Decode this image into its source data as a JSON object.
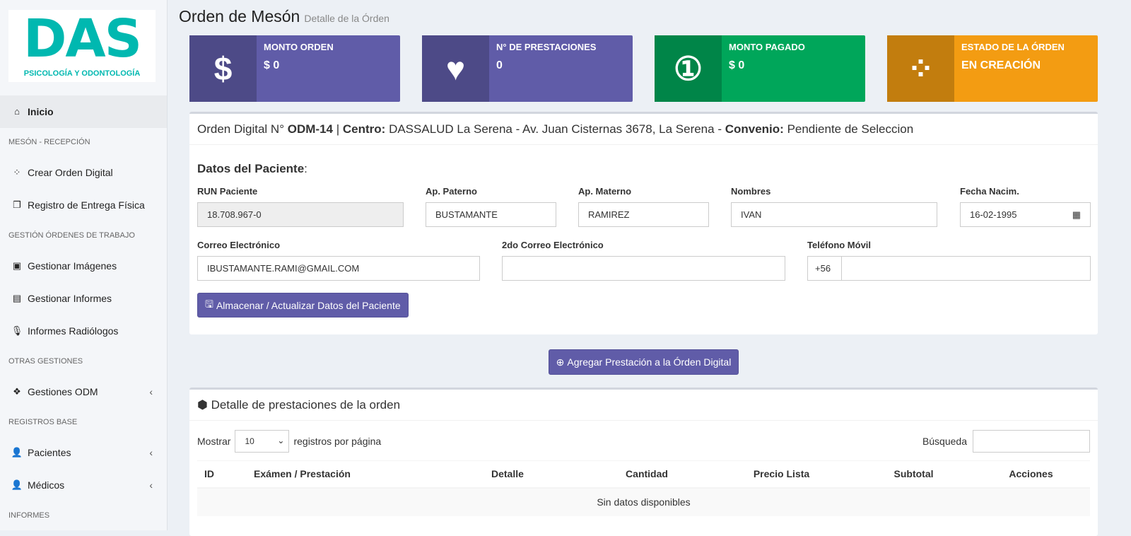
{
  "logo": {
    "big": "DAS",
    "small": "PSICOLOGÍA Y ODONTOLOGÍA"
  },
  "nav": [
    {
      "type": "item",
      "label": "Inicio",
      "icon": "home-icon",
      "glyph": "⌂"
    },
    {
      "type": "head",
      "label": "MESÓN - RECEPCIÓN"
    },
    {
      "type": "item",
      "label": "Crear Orden Digital",
      "icon": "spinner-icon",
      "glyph": "⁘"
    },
    {
      "type": "item",
      "label": "Registro de Entrega Física",
      "icon": "copy-icon",
      "glyph": "❐"
    },
    {
      "type": "head",
      "label": "GESTIÓN ÓRDENES DE TRABAJO"
    },
    {
      "type": "item",
      "label": "Gestionar Imágenes",
      "icon": "image-icon",
      "glyph": "▣"
    },
    {
      "type": "item",
      "label": "Gestionar Informes",
      "icon": "pdf-icon",
      "glyph": "▤"
    },
    {
      "type": "item",
      "label": "Informes Radiólogos",
      "icon": "microphone-icon",
      "glyph": "🎙"
    },
    {
      "type": "head",
      "label": "OTRAS GESTIONES"
    },
    {
      "type": "item",
      "label": "Gestiones ODM",
      "icon": "cubes-icon",
      "glyph": "❖",
      "chevron": "‹"
    },
    {
      "type": "head",
      "label": "REGISTROS BASE"
    },
    {
      "type": "item",
      "label": "Pacientes",
      "icon": "user-icon",
      "glyph": "👤",
      "chevron": "‹"
    },
    {
      "type": "item",
      "label": "Médicos",
      "icon": "user-doctor-icon",
      "glyph": "👤",
      "chevron": "‹"
    },
    {
      "type": "head",
      "label": "INFORMES"
    }
  ],
  "header": {
    "title": "Orden de Mesón",
    "subtitle": "Detalle de la Órden"
  },
  "boxes": [
    {
      "label": "MONTO ORDEN",
      "value": "$ 0",
      "icon": "dollar-icon",
      "glyph": "$",
      "color": "#605ca8",
      "dark": "#4d4a87"
    },
    {
      "label": "N° DE PRESTACIONES",
      "value": "0",
      "icon": "heart-icon",
      "glyph": "♥",
      "color": "#605ca8",
      "dark": "#4d4a87"
    },
    {
      "label": "MONTO PAGADO",
      "value": "$ 0",
      "icon": "money-bill-icon",
      "glyph": "①",
      "color": "#00a65a",
      "dark": "#008548"
    },
    {
      "label": "ESTADO DE LA ÓRDEN",
      "value": "EN CREACIÓN",
      "icon": "spinner-icon",
      "glyph": "⁘",
      "color": "#f39c12",
      "dark": "#c27d0e"
    }
  ],
  "order": {
    "prefix": "Orden Digital N°",
    "code": "ODM-14",
    "sep": "|",
    "centro_label": "Centro:",
    "centro": "DASSALUD La Serena - Av. Juan Cisternas 3678, La Serena -",
    "convenio_label": "Convenio:",
    "convenio": "Pendiente de Seleccion"
  },
  "patient": {
    "title": "Datos del Paciente",
    "run_label": "RUN Paciente",
    "run": "18.708.967-0",
    "paterno_label": "Ap. Paterno",
    "paterno": "BUSTAMANTE",
    "materno_label": "Ap. Materno",
    "materno": "RAMIREZ",
    "nombres_label": "Nombres",
    "nombres": "IVAN",
    "fecha_label": "Fecha Nacim.",
    "fecha": "16-02-1995",
    "correo_label": "Correo Electrónico",
    "correo": "IBUSTAMANTE.RAMI@GMAIL.COM",
    "correo2_label": "2do Correo Electrónico",
    "correo2": "",
    "tel_label": "Teléfono Móvil",
    "tel_prefix": "+56",
    "tel": "",
    "save_label": "Almacenar / Actualizar Datos del Paciente"
  },
  "add_button": "Agregar Prestación a la Órden Digital",
  "detail": {
    "title": "Detalle de prestaciones de la orden",
    "show_label": "Mostrar",
    "page_size": "10",
    "per_page": "registros por página",
    "search_label": "Búsqueda",
    "search": "",
    "columns": [
      "ID",
      "Exámen / Prestación",
      "Detalle",
      "Cantidad",
      "Precio Lista",
      "Subtotal",
      "Acciones"
    ],
    "empty": "Sin datos disponibles"
  }
}
